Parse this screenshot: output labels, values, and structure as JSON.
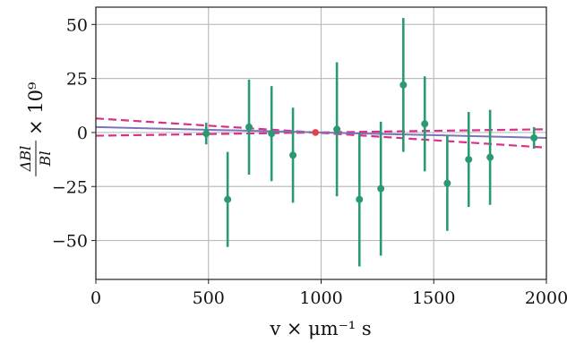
{
  "chart_data": {
    "type": "scatter",
    "xlabel": "v × μm⁻¹ s",
    "ylabel": "ΔBl/Bl × 10⁹",
    "ylabel_fraction": {
      "numerator": "ΔBl",
      "denominator": "Bl",
      "factor": "× 10⁹"
    },
    "xlim": [
      0,
      2000
    ],
    "ylim": [
      -68,
      58
    ],
    "x_ticks": [
      0,
      500,
      1000,
      1500,
      2000
    ],
    "y_ticks": [
      -50,
      -25,
      0,
      25,
      50
    ],
    "x_tick_labels": [
      "0",
      "500",
      "1000",
      "1500",
      "2000"
    ],
    "y_tick_labels": [
      "−50",
      "−25",
      "0",
      "25",
      "50"
    ],
    "grid": true,
    "colors": {
      "points": "#2a9a72",
      "reference_point": "#e0424a",
      "fit_line": "#7a74b8",
      "confidence_band": "#d9308a",
      "grid": "#bdbdbd"
    },
    "points": [
      {
        "x": 490,
        "y": -0.5,
        "err": 5
      },
      {
        "x": 585,
        "y": -31,
        "err": 22
      },
      {
        "x": 680,
        "y": 2.5,
        "err": 22
      },
      {
        "x": 780,
        "y": -0.5,
        "err": 22
      },
      {
        "x": 875,
        "y": -10.5,
        "err": 22
      },
      {
        "x": 1070,
        "y": 1.5,
        "err": 31
      },
      {
        "x": 1170,
        "y": -31,
        "err": 31
      },
      {
        "x": 1265,
        "y": -26,
        "err": 31
      },
      {
        "x": 1365,
        "y": 22,
        "err": 31
      },
      {
        "x": 1460,
        "y": 4,
        "err": 22
      },
      {
        "x": 1560,
        "y": -23.5,
        "err": 22
      },
      {
        "x": 1655,
        "y": -12.5,
        "err": 22
      },
      {
        "x": 1750,
        "y": -11.5,
        "err": 22
      },
      {
        "x": 1945,
        "y": -2.5,
        "err": 5
      }
    ],
    "reference_point": {
      "x": 975,
      "y": 0
    },
    "fit_line": {
      "x": [
        0,
        2000
      ],
      "y": [
        2.5,
        -2.5
      ]
    },
    "confidence_upper": {
      "x": [
        0,
        975,
        2000
      ],
      "y": [
        6.5,
        0,
        -7.0
      ]
    },
    "confidence_lower": {
      "x": [
        0,
        975,
        2000
      ],
      "y": [
        -1.5,
        0,
        1.5
      ]
    }
  }
}
